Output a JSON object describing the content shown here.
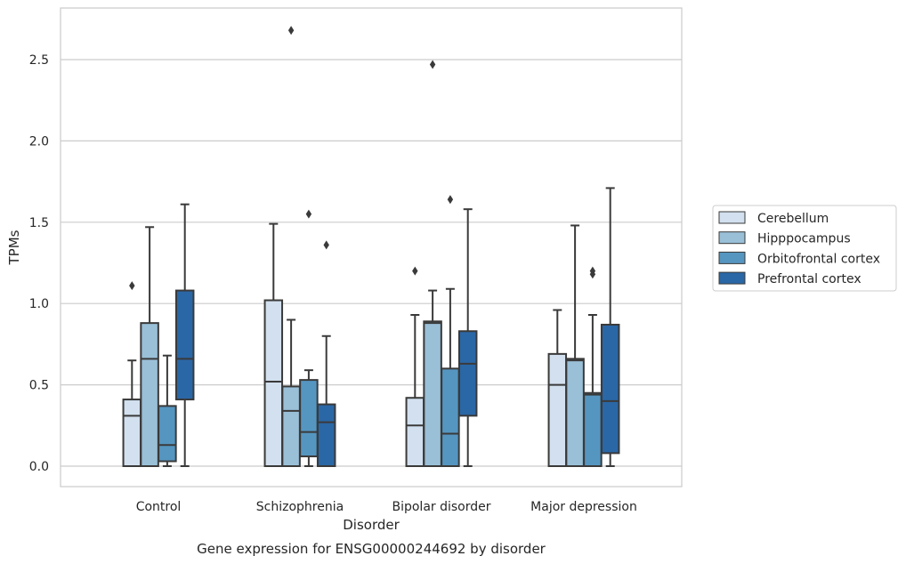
{
  "chart_data": {
    "type": "boxplot",
    "title": "Gene expression for ENSG00000244692 by disorder",
    "xlabel": "Disorder",
    "ylabel": "TPMs",
    "ylim": [
      -0.13,
      2.83
    ],
    "yticks": [
      "0.0",
      "0.5",
      "1.0",
      "1.5",
      "2.0",
      "2.5"
    ],
    "ytick_values": [
      0.0,
      0.5,
      1.0,
      1.5,
      2.0,
      2.5
    ],
    "grid": "horizontal",
    "legend_position": "right",
    "categories": [
      "Control",
      "Schizophrenia",
      "Bipolar disorder",
      "Major depression"
    ],
    "series": [
      {
        "name": "Cerebellum",
        "color": "#d2e0ef",
        "boxes": [
          {
            "whislo": 0.0,
            "q1": 0.0,
            "med": 0.31,
            "q3": 0.41,
            "whishi": 0.65,
            "fliers": [
              1.11
            ]
          },
          {
            "whislo": 0.0,
            "q1": 0.0,
            "med": 0.52,
            "q3": 1.02,
            "whishi": 1.49,
            "fliers": []
          },
          {
            "whislo": 0.0,
            "q1": 0.0,
            "med": 0.25,
            "q3": 0.42,
            "whishi": 0.93,
            "fliers": [
              1.2
            ]
          },
          {
            "whislo": 0.0,
            "q1": 0.0,
            "med": 0.5,
            "q3": 0.69,
            "whishi": 0.96,
            "fliers": []
          }
        ]
      },
      {
        "name": "Hipppocampus",
        "color": "#9ac0d8",
        "boxes": [
          {
            "whislo": 0.0,
            "q1": 0.0,
            "med": 0.66,
            "q3": 0.88,
            "whishi": 1.47,
            "fliers": []
          },
          {
            "whislo": 0.0,
            "q1": 0.0,
            "med": 0.34,
            "q3": 0.49,
            "whishi": 0.9,
            "fliers": [
              2.68
            ]
          },
          {
            "whislo": 0.0,
            "q1": 0.0,
            "med": 0.88,
            "q3": 0.89,
            "whishi": 1.08,
            "fliers": [
              2.47
            ]
          },
          {
            "whislo": 0.0,
            "q1": 0.0,
            "med": 0.65,
            "q3": 0.66,
            "whishi": 1.48,
            "fliers": []
          }
        ]
      },
      {
        "name": "Orbitofrontal cortex",
        "color": "#5596c1",
        "boxes": [
          {
            "whislo": 0.0,
            "q1": 0.03,
            "med": 0.13,
            "q3": 0.37,
            "whishi": 0.68,
            "fliers": []
          },
          {
            "whislo": 0.0,
            "q1": 0.06,
            "med": 0.21,
            "q3": 0.53,
            "whishi": 0.59,
            "fliers": [
              1.55
            ]
          },
          {
            "whislo": 0.0,
            "q1": 0.0,
            "med": 0.2,
            "q3": 0.6,
            "whishi": 1.09,
            "fliers": [
              1.64
            ]
          },
          {
            "whislo": 0.0,
            "q1": 0.0,
            "med": 0.44,
            "q3": 0.45,
            "whishi": 0.93,
            "fliers": [
              1.18,
              1.2
            ]
          }
        ]
      },
      {
        "name": "Prefrontal cortex",
        "color": "#2a67a6",
        "boxes": [
          {
            "whislo": 0.0,
            "q1": 0.41,
            "med": 0.66,
            "q3": 1.08,
            "whishi": 1.61,
            "fliers": []
          },
          {
            "whislo": 0.0,
            "q1": 0.0,
            "med": 0.27,
            "q3": 0.38,
            "whishi": 0.8,
            "fliers": [
              1.36
            ]
          },
          {
            "whislo": 0.0,
            "q1": 0.31,
            "med": 0.63,
            "q3": 0.83,
            "whishi": 1.58,
            "fliers": []
          },
          {
            "whislo": 0.0,
            "q1": 0.08,
            "med": 0.4,
            "q3": 0.87,
            "whishi": 1.71,
            "fliers": []
          }
        ]
      }
    ]
  }
}
